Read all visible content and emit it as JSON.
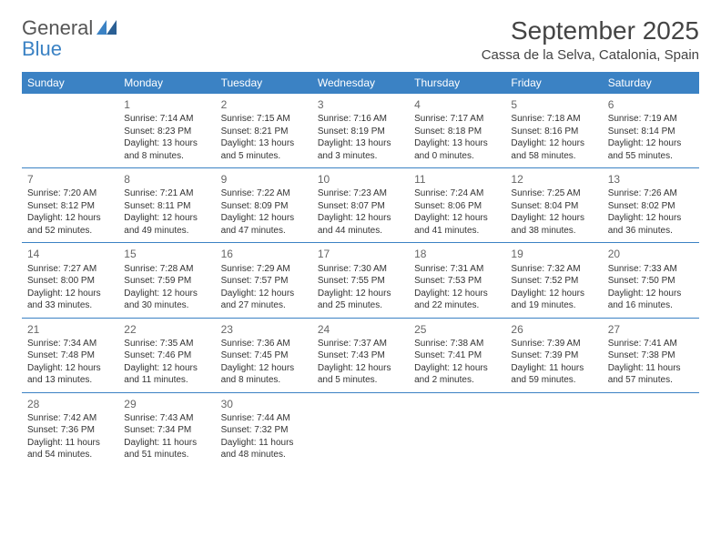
{
  "logo": {
    "text_general": "General",
    "text_blue": "Blue"
  },
  "title": "September 2025",
  "location": "Cassa de la Selva, Catalonia, Spain",
  "colors": {
    "header_bg": "#3b82c4",
    "header_text": "#ffffff",
    "body_text": "#333333",
    "day_num": "#666666",
    "border": "#3b82c4"
  },
  "day_names": [
    "Sunday",
    "Monday",
    "Tuesday",
    "Wednesday",
    "Thursday",
    "Friday",
    "Saturday"
  ],
  "weeks": [
    [
      null,
      {
        "n": "1",
        "sr": "Sunrise: 7:14 AM",
        "ss": "Sunset: 8:23 PM",
        "dl": "Daylight: 13 hours and 8 minutes."
      },
      {
        "n": "2",
        "sr": "Sunrise: 7:15 AM",
        "ss": "Sunset: 8:21 PM",
        "dl": "Daylight: 13 hours and 5 minutes."
      },
      {
        "n": "3",
        "sr": "Sunrise: 7:16 AM",
        "ss": "Sunset: 8:19 PM",
        "dl": "Daylight: 13 hours and 3 minutes."
      },
      {
        "n": "4",
        "sr": "Sunrise: 7:17 AM",
        "ss": "Sunset: 8:18 PM",
        "dl": "Daylight: 13 hours and 0 minutes."
      },
      {
        "n": "5",
        "sr": "Sunrise: 7:18 AM",
        "ss": "Sunset: 8:16 PM",
        "dl": "Daylight: 12 hours and 58 minutes."
      },
      {
        "n": "6",
        "sr": "Sunrise: 7:19 AM",
        "ss": "Sunset: 8:14 PM",
        "dl": "Daylight: 12 hours and 55 minutes."
      }
    ],
    [
      {
        "n": "7",
        "sr": "Sunrise: 7:20 AM",
        "ss": "Sunset: 8:12 PM",
        "dl": "Daylight: 12 hours and 52 minutes."
      },
      {
        "n": "8",
        "sr": "Sunrise: 7:21 AM",
        "ss": "Sunset: 8:11 PM",
        "dl": "Daylight: 12 hours and 49 minutes."
      },
      {
        "n": "9",
        "sr": "Sunrise: 7:22 AM",
        "ss": "Sunset: 8:09 PM",
        "dl": "Daylight: 12 hours and 47 minutes."
      },
      {
        "n": "10",
        "sr": "Sunrise: 7:23 AM",
        "ss": "Sunset: 8:07 PM",
        "dl": "Daylight: 12 hours and 44 minutes."
      },
      {
        "n": "11",
        "sr": "Sunrise: 7:24 AM",
        "ss": "Sunset: 8:06 PM",
        "dl": "Daylight: 12 hours and 41 minutes."
      },
      {
        "n": "12",
        "sr": "Sunrise: 7:25 AM",
        "ss": "Sunset: 8:04 PM",
        "dl": "Daylight: 12 hours and 38 minutes."
      },
      {
        "n": "13",
        "sr": "Sunrise: 7:26 AM",
        "ss": "Sunset: 8:02 PM",
        "dl": "Daylight: 12 hours and 36 minutes."
      }
    ],
    [
      {
        "n": "14",
        "sr": "Sunrise: 7:27 AM",
        "ss": "Sunset: 8:00 PM",
        "dl": "Daylight: 12 hours and 33 minutes."
      },
      {
        "n": "15",
        "sr": "Sunrise: 7:28 AM",
        "ss": "Sunset: 7:59 PM",
        "dl": "Daylight: 12 hours and 30 minutes."
      },
      {
        "n": "16",
        "sr": "Sunrise: 7:29 AM",
        "ss": "Sunset: 7:57 PM",
        "dl": "Daylight: 12 hours and 27 minutes."
      },
      {
        "n": "17",
        "sr": "Sunrise: 7:30 AM",
        "ss": "Sunset: 7:55 PM",
        "dl": "Daylight: 12 hours and 25 minutes."
      },
      {
        "n": "18",
        "sr": "Sunrise: 7:31 AM",
        "ss": "Sunset: 7:53 PM",
        "dl": "Daylight: 12 hours and 22 minutes."
      },
      {
        "n": "19",
        "sr": "Sunrise: 7:32 AM",
        "ss": "Sunset: 7:52 PM",
        "dl": "Daylight: 12 hours and 19 minutes."
      },
      {
        "n": "20",
        "sr": "Sunrise: 7:33 AM",
        "ss": "Sunset: 7:50 PM",
        "dl": "Daylight: 12 hours and 16 minutes."
      }
    ],
    [
      {
        "n": "21",
        "sr": "Sunrise: 7:34 AM",
        "ss": "Sunset: 7:48 PM",
        "dl": "Daylight: 12 hours and 13 minutes."
      },
      {
        "n": "22",
        "sr": "Sunrise: 7:35 AM",
        "ss": "Sunset: 7:46 PM",
        "dl": "Daylight: 12 hours and 11 minutes."
      },
      {
        "n": "23",
        "sr": "Sunrise: 7:36 AM",
        "ss": "Sunset: 7:45 PM",
        "dl": "Daylight: 12 hours and 8 minutes."
      },
      {
        "n": "24",
        "sr": "Sunrise: 7:37 AM",
        "ss": "Sunset: 7:43 PM",
        "dl": "Daylight: 12 hours and 5 minutes."
      },
      {
        "n": "25",
        "sr": "Sunrise: 7:38 AM",
        "ss": "Sunset: 7:41 PM",
        "dl": "Daylight: 12 hours and 2 minutes."
      },
      {
        "n": "26",
        "sr": "Sunrise: 7:39 AM",
        "ss": "Sunset: 7:39 PM",
        "dl": "Daylight: 11 hours and 59 minutes."
      },
      {
        "n": "27",
        "sr": "Sunrise: 7:41 AM",
        "ss": "Sunset: 7:38 PM",
        "dl": "Daylight: 11 hours and 57 minutes."
      }
    ],
    [
      {
        "n": "28",
        "sr": "Sunrise: 7:42 AM",
        "ss": "Sunset: 7:36 PM",
        "dl": "Daylight: 11 hours and 54 minutes."
      },
      {
        "n": "29",
        "sr": "Sunrise: 7:43 AM",
        "ss": "Sunset: 7:34 PM",
        "dl": "Daylight: 11 hours and 51 minutes."
      },
      {
        "n": "30",
        "sr": "Sunrise: 7:44 AM",
        "ss": "Sunset: 7:32 PM",
        "dl": "Daylight: 11 hours and 48 minutes."
      },
      null,
      null,
      null,
      null
    ]
  ]
}
